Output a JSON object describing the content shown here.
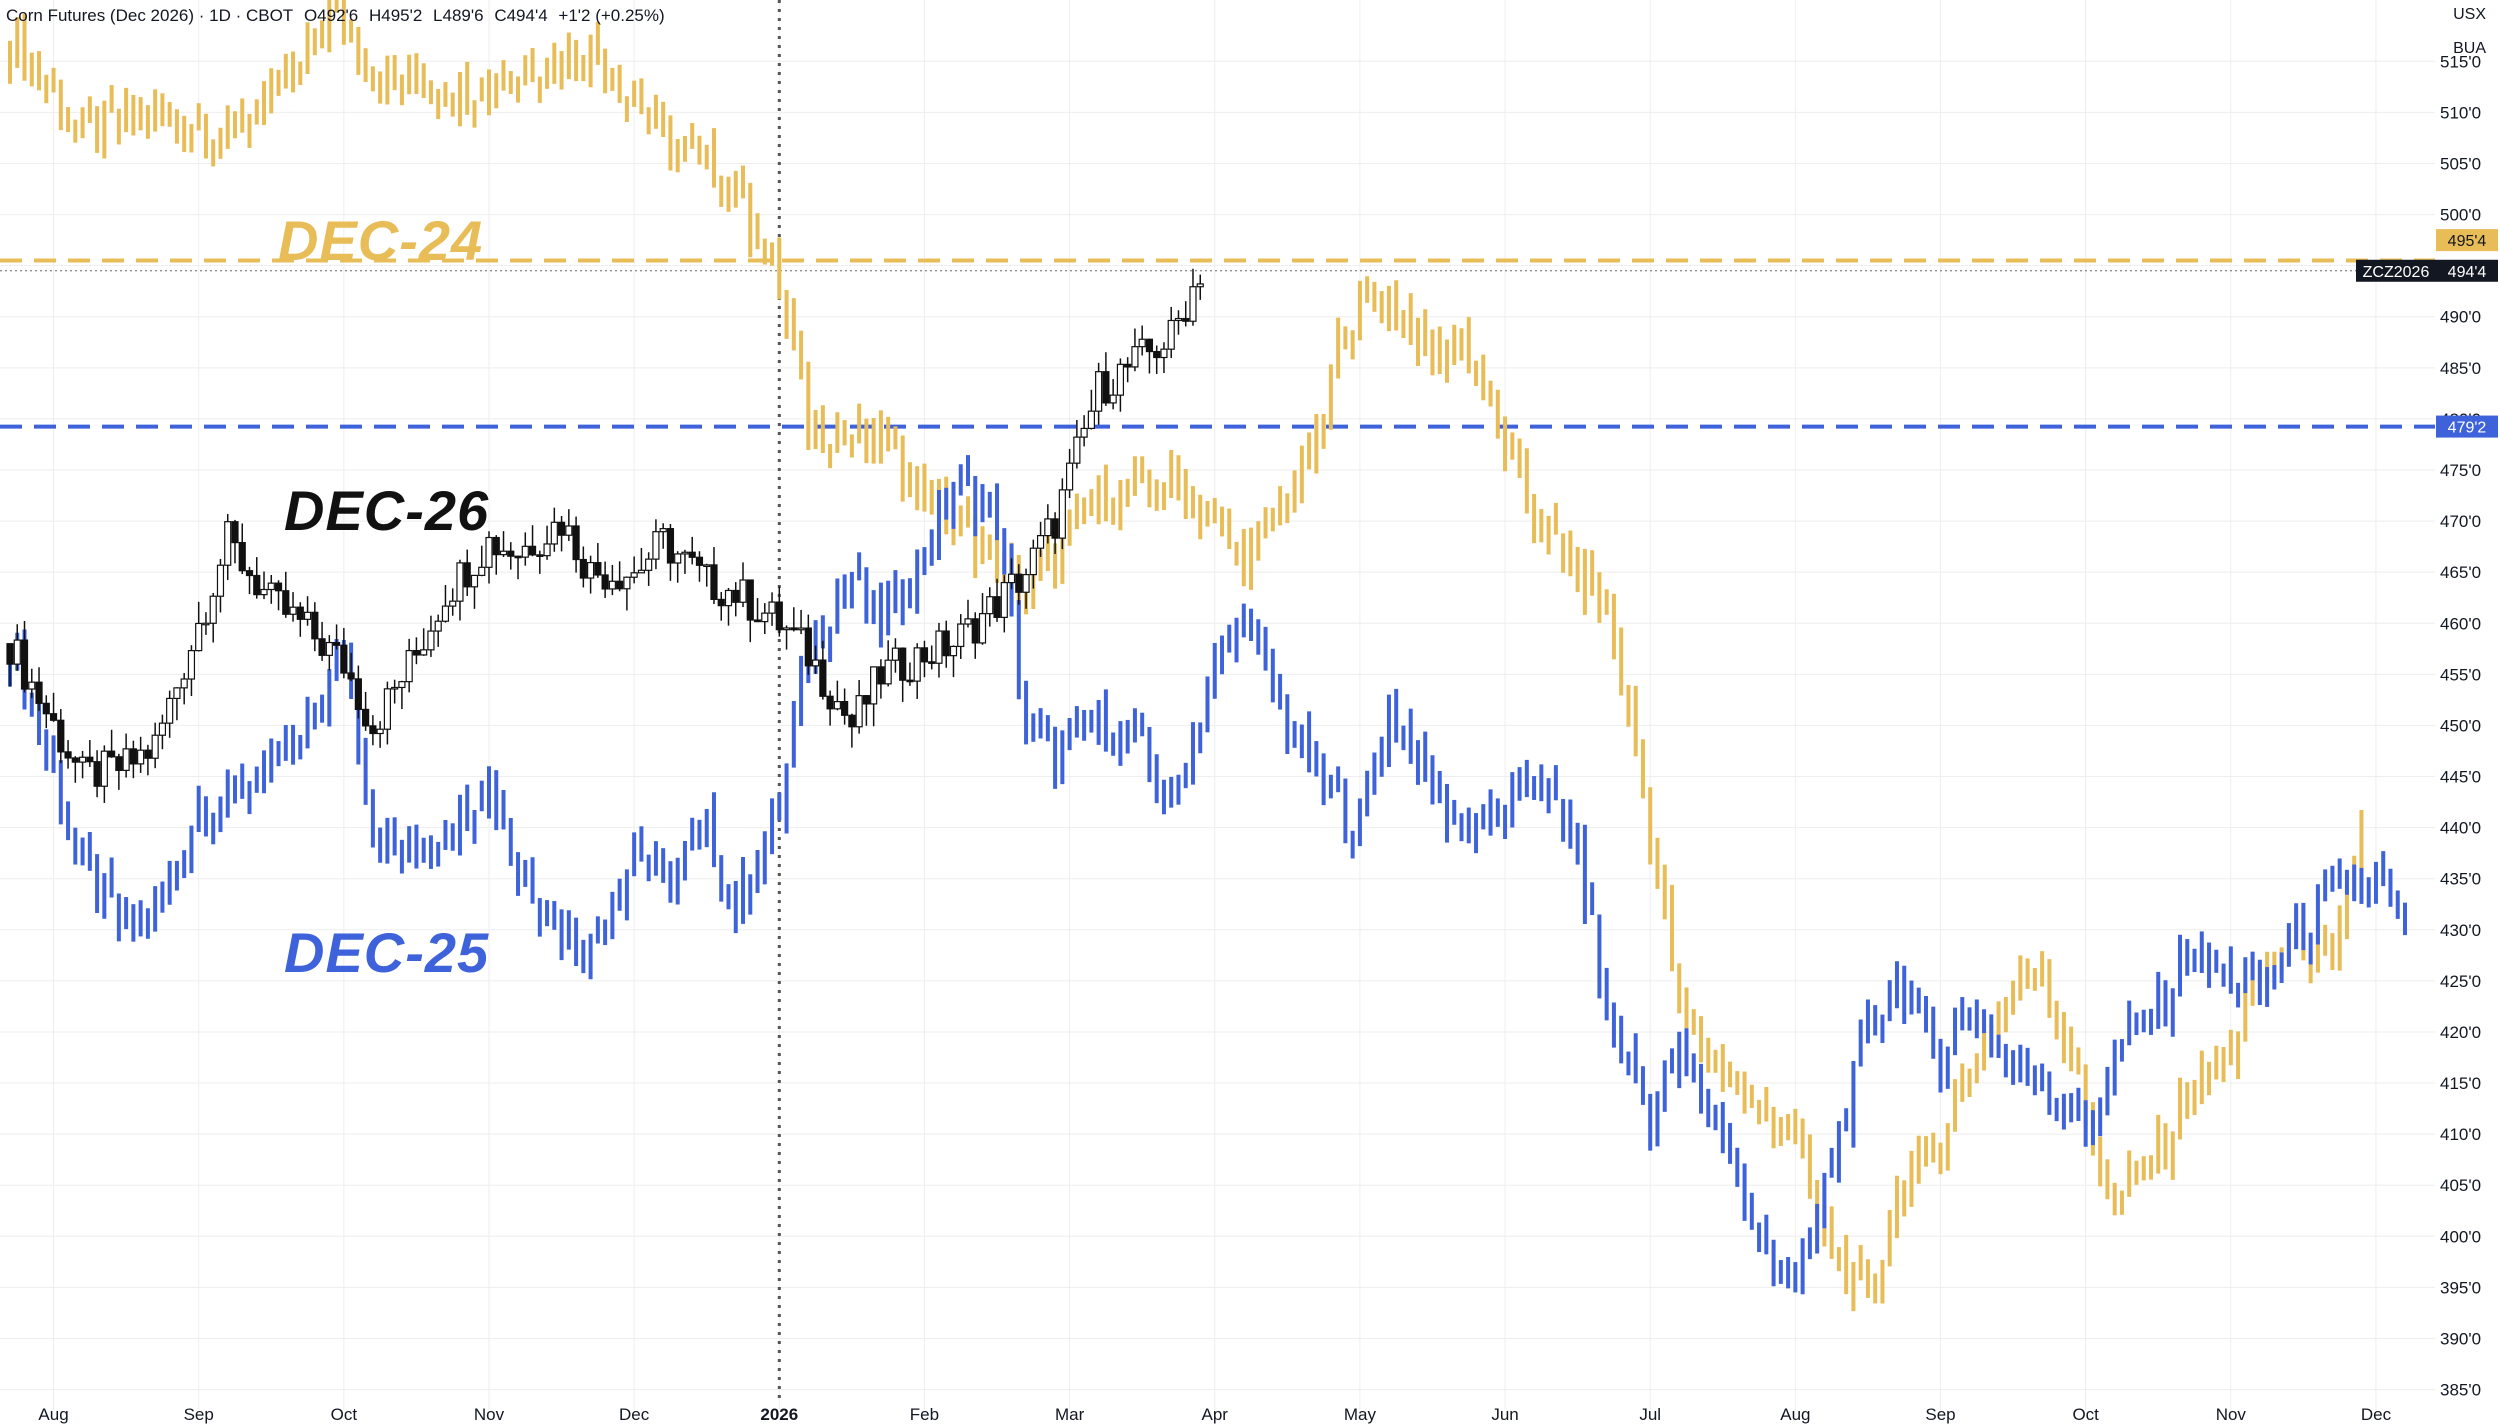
{
  "header": {
    "symbol": "Corn Futures (Dec 2026) · 1D · CBOT",
    "open": "O492'6",
    "high": "H495'2",
    "low": "L489'6",
    "close": "C494'4",
    "change": "+1'2 (+0.25%)"
  },
  "axis_units": {
    "currency": "USX",
    "unit": "BUA"
  },
  "labels": {
    "dec24": "DEC-24",
    "dec26": "DEC-26",
    "dec25": "DEC-25"
  },
  "colors": {
    "dec24": "#E8BC57",
    "dec25": "#3D62DA",
    "dec26": "#111111",
    "grid": "#eeeeee"
  },
  "price_tags": {
    "dec24_level": "495'4",
    "ticker": "ZCZ2026",
    "last": "494'4",
    "dec25_level": "479'2"
  },
  "chart_data": {
    "type": "bar",
    "price_axis": {
      "ylim": [
        383,
        521
      ],
      "ticks": [
        385,
        390,
        395,
        400,
        405,
        410,
        415,
        420,
        425,
        430,
        435,
        440,
        445,
        450,
        455,
        460,
        465,
        470,
        475,
        480,
        485,
        490,
        495,
        500,
        505,
        510,
        515
      ],
      "tick_labels": [
        "385'0",
        "390'0",
        "395'0",
        "400'0",
        "405'0",
        "410'0",
        "415'0",
        "420'0",
        "425'0",
        "430'0",
        "435'0",
        "440'0",
        "445'0",
        "450'0",
        "455'0",
        "460'0",
        "465'0",
        "470'0",
        "475'0",
        "480'0",
        "485'0",
        "490'0",
        "495'0",
        "500'0",
        "505'0",
        "510'0",
        "515'0"
      ]
    },
    "time_axis": {
      "labels": [
        "Aug",
        "Sep",
        "Oct",
        "Nov",
        "Dec",
        "2026",
        "Feb",
        "Mar",
        "Apr",
        "May",
        "Jun",
        "Jul",
        "Aug",
        "Sep",
        "Oct",
        "Nov",
        "Dec"
      ],
      "positions": [
        0.3,
        1.3,
        2.3,
        3.3,
        4.3,
        5.3,
        6.3,
        7.3,
        8.3,
        9.3,
        10.3,
        11.3,
        12.3,
        13.3,
        14.3,
        15.3,
        16.3
      ],
      "xlim": [
        0,
        16.5
      ],
      "year_marker": "2026"
    },
    "horizontal_levels": [
      {
        "series": "DEC-24",
        "value": 495.5,
        "style": "dashed"
      },
      {
        "series": "DEC-25",
        "value": 479.25,
        "style": "dashed"
      },
      {
        "series": "DEC-26",
        "value": 494.5,
        "style": "dotted"
      }
    ],
    "series": [
      {
        "name": "DEC-24",
        "style": "ohlc",
        "x": [
          0.0,
          0.5,
          1.0,
          1.5,
          2.0,
          2.2,
          2.5,
          3.0,
          3.5,
          4.0,
          4.5,
          5.0,
          5.3,
          5.5,
          6.0,
          6.5,
          7.0,
          7.5,
          8.0,
          8.5,
          9.0,
          9.2,
          9.5,
          9.8,
          10.0,
          10.3,
          10.5,
          10.8,
          11.0,
          11.3,
          11.5,
          12.0,
          12.3,
          12.5,
          12.8,
          13.0,
          13.3,
          13.5,
          13.8,
          14.0,
          14.3,
          14.5,
          14.8,
          15.0,
          15.3,
          15.5,
          15.8,
          16.0,
          16.2
        ],
        "close": [
          517,
          508,
          510,
          508,
          514,
          520,
          514,
          512,
          514,
          516,
          508,
          503,
          493,
          479,
          478,
          470,
          463,
          472,
          474,
          466,
          477,
          490,
          492,
          486,
          488,
          478,
          470,
          465,
          462,
          440,
          422,
          412,
          410,
          400,
          393,
          404,
          410,
          416,
          424,
          427,
          412,
          403,
          408,
          414,
          418,
          426,
          429,
          425,
          440
        ]
      },
      {
        "name": "DEC-25",
        "style": "ohlc",
        "x": [
          0.0,
          0.3,
          0.5,
          0.8,
          1.0,
          1.3,
          1.5,
          1.8,
          2.0,
          2.3,
          2.5,
          2.8,
          3.0,
          3.3,
          3.5,
          3.8,
          4.0,
          4.3,
          4.5,
          4.8,
          5.0,
          5.3,
          5.5,
          5.8,
          6.0,
          6.3,
          6.5,
          6.8,
          7.0,
          7.2,
          7.5,
          7.8,
          8.0,
          8.3,
          8.5,
          8.8,
          9.0,
          9.3,
          9.5,
          9.8,
          10.0,
          10.3,
          10.5,
          10.8,
          11.0,
          11.3,
          11.5,
          11.8,
          12.0,
          12.3,
          12.5,
          12.8,
          13.0,
          13.3,
          13.5,
          13.8,
          14.0,
          14.3,
          14.5,
          14.8,
          15.0,
          15.3,
          15.5,
          15.8,
          16.0,
          16.3,
          16.5
        ],
        "close": [
          458,
          445,
          436,
          430,
          432,
          442,
          443,
          446,
          448,
          457,
          440,
          437,
          440,
          445,
          436,
          430,
          428,
          438,
          435,
          440,
          432,
          442,
          457,
          465,
          460,
          467,
          474,
          470,
          450,
          447,
          450,
          448,
          442,
          455,
          461,
          450,
          445,
          440,
          452,
          444,
          440,
          442,
          445,
          438,
          422,
          412,
          418,
          410,
          400,
          395,
          405,
          420,
          425,
          418,
          422,
          416,
          416,
          410,
          418,
          422,
          428,
          425,
          424,
          430,
          433,
          435,
          430
        ]
      },
      {
        "name": "DEC-26",
        "style": "candlestick",
        "x": [
          0.0,
          0.3,
          0.5,
          0.8,
          1.0,
          1.3,
          1.5,
          1.8,
          2.0,
          2.3,
          2.5,
          2.8,
          3.0,
          3.3,
          3.5,
          3.8,
          4.0,
          4.3,
          4.5,
          4.8,
          5.0,
          5.3,
          5.5,
          5.8,
          6.0,
          6.3,
          6.5,
          6.8,
          7.0,
          7.2,
          7.5,
          7.7,
          7.9,
          8.0,
          8.2
        ],
        "close": [
          458,
          450,
          445,
          446,
          448,
          460,
          468,
          462,
          460,
          456,
          450,
          457,
          463,
          468,
          467,
          470,
          465,
          465,
          468,
          464,
          463,
          460,
          457,
          450,
          455,
          457,
          458,
          462,
          465,
          470,
          483,
          485,
          487,
          488,
          494.5
        ]
      }
    ]
  }
}
